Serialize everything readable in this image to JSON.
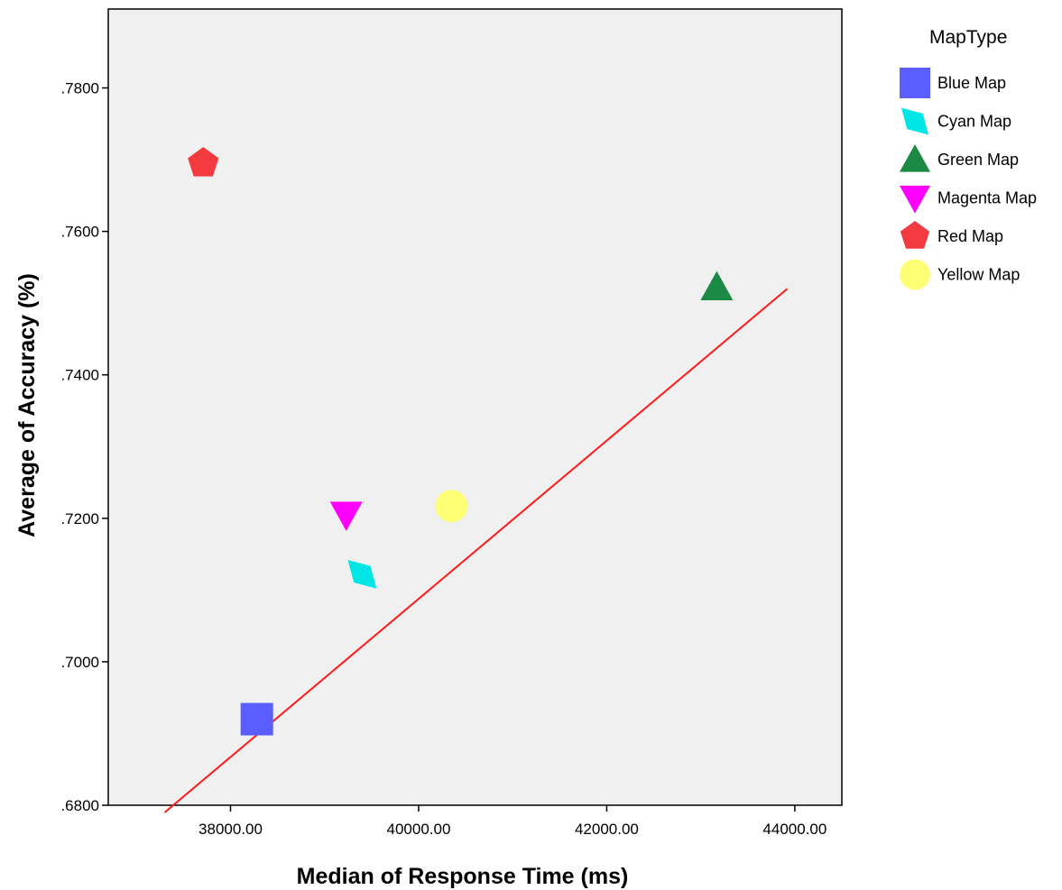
{
  "chart_data": {
    "type": "scatter",
    "xlabel": "Median of Response Time (ms)",
    "ylabel": "Average of Accuracy (%)",
    "xlim": [
      36700,
      44500
    ],
    "ylim": [
      0.68,
      0.791
    ],
    "x_ticks": [
      38000,
      40000,
      42000,
      44000
    ],
    "x_tick_labels": [
      "38000.00",
      "40000.00",
      "42000.00",
      "44000.00"
    ],
    "y_ticks": [
      0.68,
      0.7,
      0.72,
      0.74,
      0.76,
      0.78
    ],
    "y_tick_labels": [
      ".6800",
      ".7000",
      ".7200",
      ".7400",
      ".7600",
      ".7800"
    ],
    "grid": false,
    "legend": {
      "title": "MapType",
      "position": "right"
    },
    "series": [
      {
        "name": "Blue Map",
        "x": 38280,
        "y": 0.692,
        "marker": "square",
        "color": "#5a5eff"
      },
      {
        "name": "Cyan Map",
        "x": 39400,
        "y": 0.7122,
        "marker": "diamond",
        "color": "#00e5e5"
      },
      {
        "name": "Green Map",
        "x": 43170,
        "y": 0.7522,
        "marker": "triangle-up",
        "color": "#1b8a45"
      },
      {
        "name": "Magenta Map",
        "x": 39230,
        "y": 0.7205,
        "marker": "triangle-down",
        "color": "#ff00ff"
      },
      {
        "name": "Red Map",
        "x": 37710,
        "y": 0.7695,
        "marker": "pentagon",
        "color": "#f23a3f"
      },
      {
        "name": "Yellow Map",
        "x": 40350,
        "y": 0.7217,
        "marker": "circle",
        "color": "#ffff75"
      }
    ],
    "fit_line": {
      "x": [
        37300,
        43920
      ],
      "y": [
        0.679,
        0.752
      ],
      "color": "#ff1a1a"
    },
    "plot_background": "#f0f0f0"
  }
}
